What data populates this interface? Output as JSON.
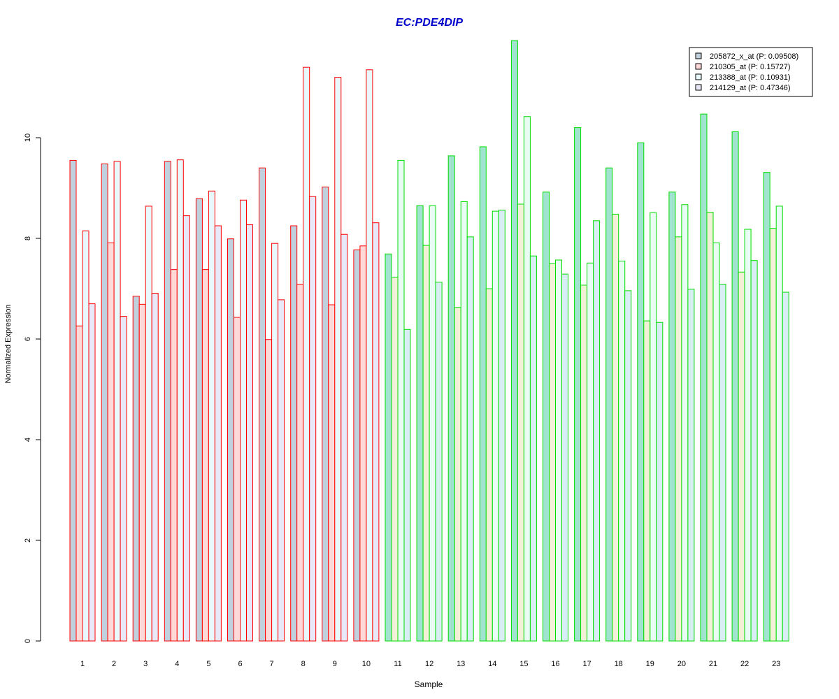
{
  "chart_data": {
    "type": "bar",
    "title": "EC:PDE4DIP",
    "xlabel": "Sample",
    "ylabel": "Normalized Expression",
    "ylim": [
      0,
      12
    ],
    "yticks": [
      "0",
      "2",
      "4",
      "6",
      "8",
      "10"
    ],
    "categories": [
      "1",
      "2",
      "3",
      "4",
      "5",
      "6",
      "7",
      "8",
      "9",
      "10",
      "11",
      "12",
      "13",
      "14",
      "15",
      "16",
      "17",
      "18",
      "19",
      "20",
      "21",
      "22",
      "23"
    ],
    "group_border_colors": [
      "#ff0000",
      "#ff0000",
      "#ff0000",
      "#ff0000",
      "#ff0000",
      "#ff0000",
      "#ff0000",
      "#ff0000",
      "#ff0000",
      "#ff0000",
      "#00dd00",
      "#00dd00",
      "#00dd00",
      "#00dd00",
      "#00dd00",
      "#00dd00",
      "#00dd00",
      "#00dd00",
      "#00dd00",
      "#00dd00",
      "#00dd00",
      "#00dd00",
      "#00dd00"
    ],
    "legend_position": "top-right",
    "series": [
      {
        "name": "205872_x_at (P: 0.09508)",
        "values": [
          9.55,
          9.48,
          6.85,
          9.53,
          8.79,
          7.99,
          9.4,
          8.25,
          9.02,
          7.77,
          7.69,
          8.65,
          9.64,
          9.82,
          11.93,
          8.92,
          10.2,
          9.4,
          9.9,
          8.92,
          10.47,
          10.12,
          9.31
        ],
        "fill_red_group": "#c0d0dc",
        "fill_green_group": "#a0e4d0"
      },
      {
        "name": "210305_at (P: 0.15727)",
        "values": [
          6.26,
          7.91,
          6.69,
          7.38,
          7.38,
          6.43,
          5.99,
          7.09,
          6.68,
          7.85,
          7.23,
          7.86,
          6.63,
          7.0,
          8.68,
          7.5,
          7.07,
          8.48,
          6.36,
          8.03,
          8.52,
          7.33,
          8.2
        ],
        "fill_red_group": "#ffd8d8",
        "fill_green_group": "#f3f0d8"
      },
      {
        "name": "213388_at (P: 0.10931)",
        "values": [
          8.15,
          9.53,
          8.64,
          9.56,
          8.94,
          8.76,
          7.9,
          11.4,
          11.2,
          11.35,
          9.55,
          8.65,
          8.73,
          8.54,
          10.42,
          7.57,
          7.51,
          7.55,
          8.51,
          8.67,
          7.91,
          8.18,
          8.64
        ],
        "fill_red_group": "#e8f8fc",
        "fill_green_group": "#e8fcf4"
      },
      {
        "name": "214129_at (P: 0.47346)",
        "values": [
          6.7,
          6.45,
          6.91,
          8.45,
          8.25,
          8.27,
          6.78,
          8.83,
          8.08,
          8.31,
          6.19,
          7.13,
          8.03,
          8.56,
          7.65,
          7.29,
          8.35,
          6.96,
          6.33,
          6.99,
          7.09,
          7.56,
          6.93
        ],
        "fill_red_group": "#e8e8f8",
        "fill_green_group": "#d8eef4"
      }
    ]
  }
}
